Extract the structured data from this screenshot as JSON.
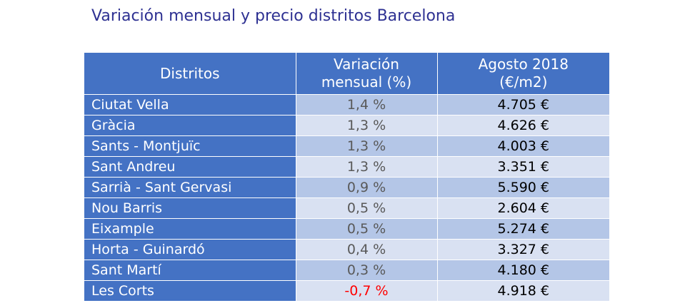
{
  "title": "Variación mensual y precio distritos Barcelona",
  "colors": {
    "title": "#2E3192",
    "header_bg": "#4472C4",
    "district_bg": "#4472C4",
    "row_band_dark": "#B4C6E7",
    "row_band_light": "#D9E1F2",
    "negative": "#FF0000"
  },
  "table": {
    "headers": {
      "district": "Distritos",
      "variation_line1": "Variación",
      "variation_line2": "mensual (%)",
      "price_line1": "Agosto 2018",
      "price_line2": "(€/m2)"
    },
    "rows": [
      {
        "district": "Ciutat Vella",
        "variation": "1,4 %",
        "price": "4.705 €",
        "negative": false
      },
      {
        "district": "Gràcia",
        "variation": "1,3 %",
        "price": "4.626 €",
        "negative": false
      },
      {
        "district": "Sants - Montjuïc",
        "variation": "1,3 %",
        "price": "4.003 €",
        "negative": false
      },
      {
        "district": "Sant Andreu",
        "variation": "1,3 %",
        "price": "3.351 €",
        "negative": false
      },
      {
        "district": "Sarrià - Sant Gervasi",
        "variation": "0,9 %",
        "price": "5.590 €",
        "negative": false
      },
      {
        "district": "Nou Barris",
        "variation": "0,5 %",
        "price": "2.604 €",
        "negative": false
      },
      {
        "district": "Eixample",
        "variation": "0,5 %",
        "price": "5.274 €",
        "negative": false
      },
      {
        "district": "Horta - Guinardó",
        "variation": "0,4 %",
        "price": "3.327 €",
        "negative": false
      },
      {
        "district": "Sant Martí",
        "variation": "0,3 %",
        "price": "4.180 €",
        "negative": false
      },
      {
        "district": "Les Corts",
        "variation": "-0,7 %",
        "price": "4.918 €",
        "negative": true
      }
    ]
  }
}
